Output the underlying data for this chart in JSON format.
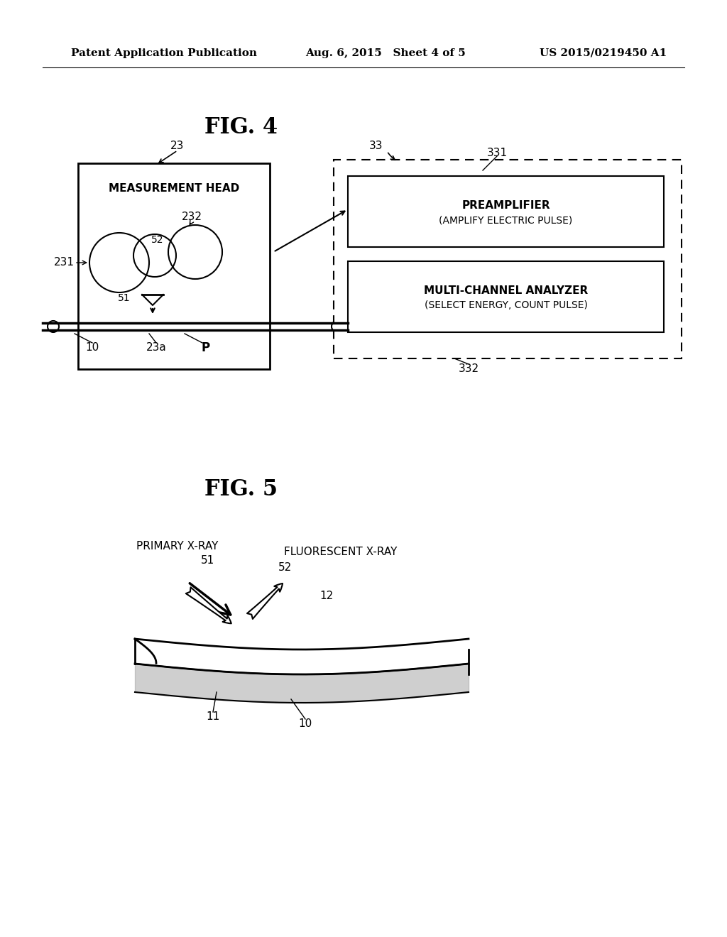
{
  "bg_color": "#ffffff",
  "header_left": "Patent Application Publication",
  "header_center": "Aug. 6, 2015   Sheet 4 of 5",
  "header_right": "US 2015/0219450 A1",
  "fig4_title": "FIG. 4",
  "fig5_title": "FIG. 5",
  "labels": {
    "measurement_head": "MEASUREMENT HEAD",
    "preamplifier_line1": "PREAMPLIFIER",
    "preamplifier_line2": "(AMPLIFY ELECTRIC PULSE)",
    "mca_line1": "MULTI-CHANNEL ANALYZER",
    "mca_line2": "(SELECT ENERGY, COUNT PULSE)",
    "primary_xray": "PRIMARY X-RAY",
    "fluorescent_xray": "FLUORESCENT X-RAY",
    "n23": "23",
    "n33": "33",
    "n331": "331",
    "n332": "332",
    "n231": "231",
    "n232": "232",
    "n51": "51",
    "n52": "52",
    "n10a": "10",
    "n23a": "23a",
    "nP": "P",
    "n51b": "51",
    "n52b": "52",
    "n12": "12",
    "n11": "11",
    "n10b": "10"
  }
}
